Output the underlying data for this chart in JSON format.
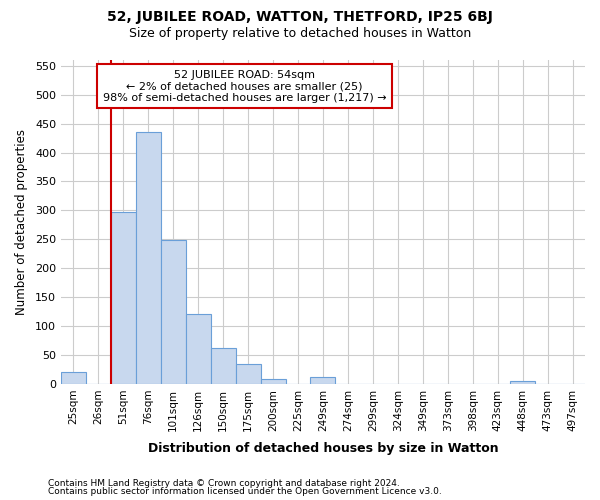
{
  "title_line1": "52, JUBILEE ROAD, WATTON, THETFORD, IP25 6BJ",
  "title_line2": "Size of property relative to detached houses in Watton",
  "xlabel": "Distribution of detached houses by size in Watton",
  "ylabel": "Number of detached properties",
  "categories": [
    "25sqm",
    "26sqm",
    "51sqm",
    "76sqm",
    "101sqm",
    "126sqm",
    "150sqm",
    "175sqm",
    "200sqm",
    "225sqm",
    "249sqm",
    "274sqm",
    "299sqm",
    "324sqm",
    "349sqm",
    "373sqm",
    "398sqm",
    "423sqm",
    "448sqm",
    "473sqm",
    "497sqm"
  ],
  "values": [
    20,
    0,
    298,
    435,
    248,
    120,
    62,
    35,
    9,
    0,
    12,
    0,
    0,
    0,
    0,
    0,
    0,
    0,
    5,
    0,
    0
  ],
  "bar_color": "#c8d8ee",
  "bar_edge_color": "#6a9fd8",
  "vline_color": "#cc0000",
  "vline_x": 2,
  "annotation_text": "52 JUBILEE ROAD: 54sqm\n← 2% of detached houses are smaller (25)\n98% of semi-detached houses are larger (1,217) →",
  "annotation_box_facecolor": "#ffffff",
  "annotation_box_edgecolor": "#cc0000",
  "ylim": [
    0,
    560
  ],
  "yticks": [
    0,
    50,
    100,
    150,
    200,
    250,
    300,
    350,
    400,
    450,
    500,
    550
  ],
  "footnote1": "Contains HM Land Registry data © Crown copyright and database right 2024.",
  "footnote2": "Contains public sector information licensed under the Open Government Licence v3.0.",
  "fig_bg_color": "#ffffff",
  "plot_bg_color": "#ffffff",
  "grid_color": "#cccccc"
}
